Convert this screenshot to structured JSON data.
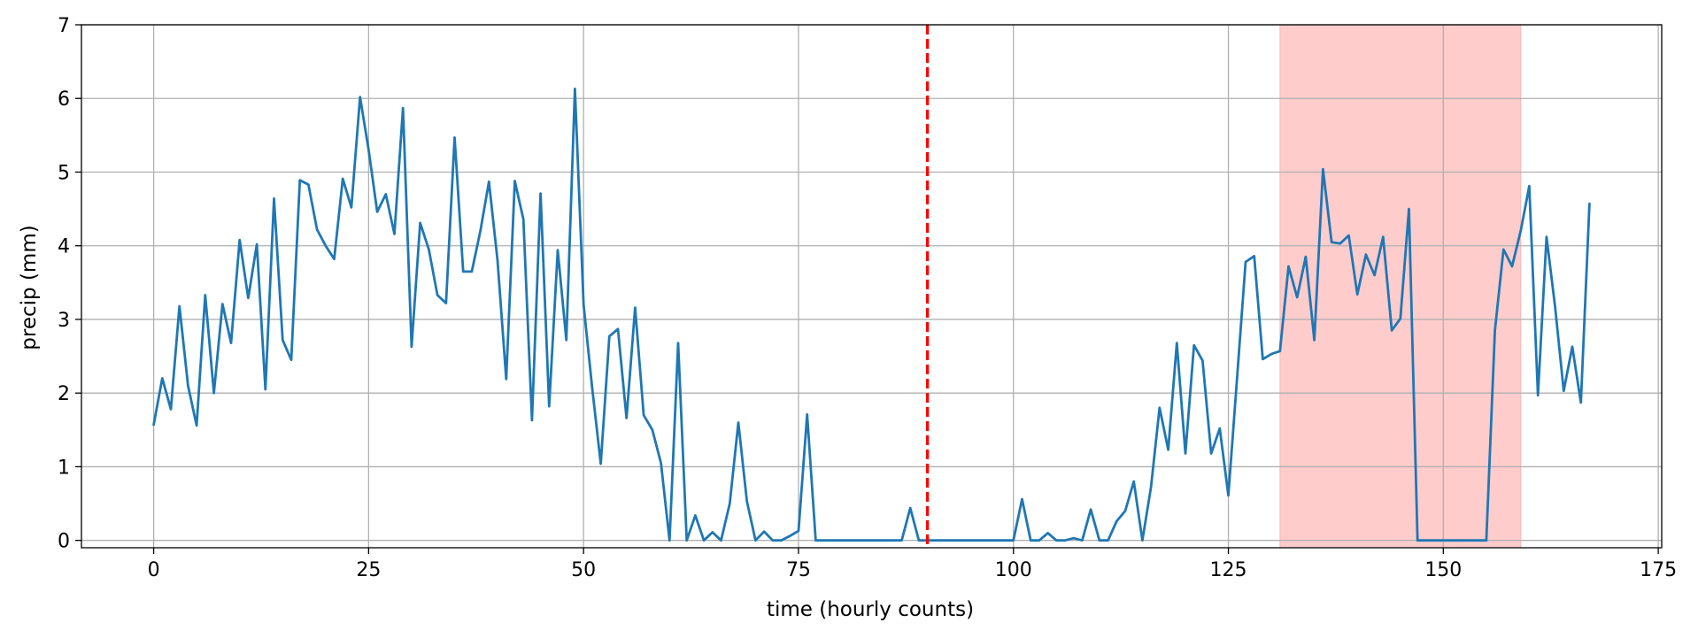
{
  "chart_data": {
    "type": "line",
    "title": "",
    "xlabel": "time (hourly counts)",
    "ylabel": "precip (mm)",
    "xlim": [
      -8.4,
      175.4
    ],
    "ylim": [
      -0.1,
      7
    ],
    "xticks": [
      0,
      25,
      50,
      75,
      100,
      125,
      150,
      175
    ],
    "yticks": [
      0,
      1,
      2,
      3,
      4,
      5,
      6,
      7
    ],
    "grid": true,
    "series": [
      {
        "color": "#1f77b4",
        "x": [
          0,
          1,
          2,
          3,
          4,
          5,
          6,
          7,
          8,
          9,
          10,
          11,
          12,
          13,
          14,
          15,
          16,
          17,
          18,
          19,
          20,
          21,
          22,
          23,
          24,
          25,
          26,
          27,
          28,
          29,
          30,
          31,
          32,
          33,
          34,
          35,
          36,
          37,
          38,
          39,
          40,
          41,
          42,
          43,
          44,
          45,
          46,
          47,
          48,
          49,
          50,
          51,
          52,
          53,
          54,
          55,
          56,
          57,
          58,
          59,
          60,
          61,
          62,
          63,
          64,
          65,
          66,
          67,
          68,
          69,
          70,
          71,
          72,
          73,
          74,
          75,
          76,
          77,
          78,
          79,
          80,
          81,
          82,
          83,
          84,
          85,
          86,
          87,
          88,
          89,
          90,
          91,
          92,
          93,
          94,
          95,
          96,
          97,
          98,
          99,
          100,
          101,
          102,
          103,
          104,
          105,
          106,
          107,
          108,
          109,
          110,
          111,
          112,
          113,
          114,
          115,
          116,
          117,
          118,
          119,
          120,
          121,
          122,
          123,
          124,
          125,
          126,
          127,
          128,
          129,
          130,
          131,
          132,
          133,
          134,
          135,
          136,
          137,
          138,
          139,
          140,
          141,
          142,
          143,
          144,
          145,
          146,
          147,
          148,
          149,
          150,
          151,
          152,
          153,
          154,
          155,
          156,
          157,
          158,
          159,
          160,
          161,
          162,
          163,
          164,
          165,
          166,
          167
        ],
        "y": [
          1.57,
          2.2,
          1.78,
          3.18,
          2.1,
          1.56,
          3.33,
          2.0,
          3.21,
          2.68,
          4.08,
          3.29,
          4.02,
          2.05,
          4.64,
          2.72,
          2.45,
          4.89,
          4.83,
          4.22,
          4.0,
          3.82,
          4.91,
          4.52,
          6.02,
          5.3,
          4.46,
          4.7,
          4.16,
          5.87,
          2.63,
          4.31,
          3.95,
          3.33,
          3.22,
          5.47,
          3.65,
          3.65,
          4.2,
          4.87,
          3.8,
          2.19,
          4.88,
          4.36,
          1.63,
          4.71,
          1.82,
          3.94,
          2.72,
          6.13,
          3.2,
          2.07,
          1.04,
          2.77,
          2.87,
          1.66,
          3.16,
          1.7,
          1.5,
          1.05,
          0.0,
          2.68,
          0.0,
          0.34,
          0.0,
          0.11,
          0.0,
          0.5,
          1.6,
          0.53,
          0.0,
          0.12,
          0.0,
          0.0,
          0.06,
          0.13,
          1.71,
          0.0,
          0.0,
          0.0,
          0.0,
          0.0,
          0.0,
          0.0,
          0.0,
          0.0,
          0.0,
          0.0,
          0.44,
          0.0,
          0.0,
          0.0,
          0.0,
          0.0,
          0.0,
          0.0,
          0.0,
          0.0,
          0.0,
          0.0,
          0.0,
          0.56,
          0.0,
          0.0,
          0.1,
          0.0,
          0.0,
          0.03,
          0.0,
          0.42,
          0.0,
          0.0,
          0.26,
          0.4,
          0.8,
          0.0,
          0.72,
          1.8,
          1.23,
          2.68,
          1.18,
          2.65,
          2.44,
          1.18,
          1.52,
          0.61,
          2.18,
          3.78,
          3.86,
          2.46,
          2.53,
          2.57,
          3.72,
          3.3,
          3.85,
          2.72,
          5.04,
          4.05,
          4.03,
          4.14,
          3.34,
          3.88,
          3.6,
          4.12,
          2.85,
          3.01,
          4.5,
          0.0,
          0.0,
          0.0,
          0.0,
          0.0,
          0.0,
          0.0,
          0.0,
          0.0,
          2.85,
          3.95,
          3.72,
          4.2,
          4.81,
          1.97,
          4.12,
          3.17,
          2.03,
          2.63,
          1.87,
          4.57
        ]
      }
    ],
    "vline": {
      "x": 90,
      "color": "#ff0000",
      "style": "dashed"
    },
    "shaded_region": {
      "x_start": 131,
      "x_end": 159,
      "color": "#ff9999"
    }
  }
}
